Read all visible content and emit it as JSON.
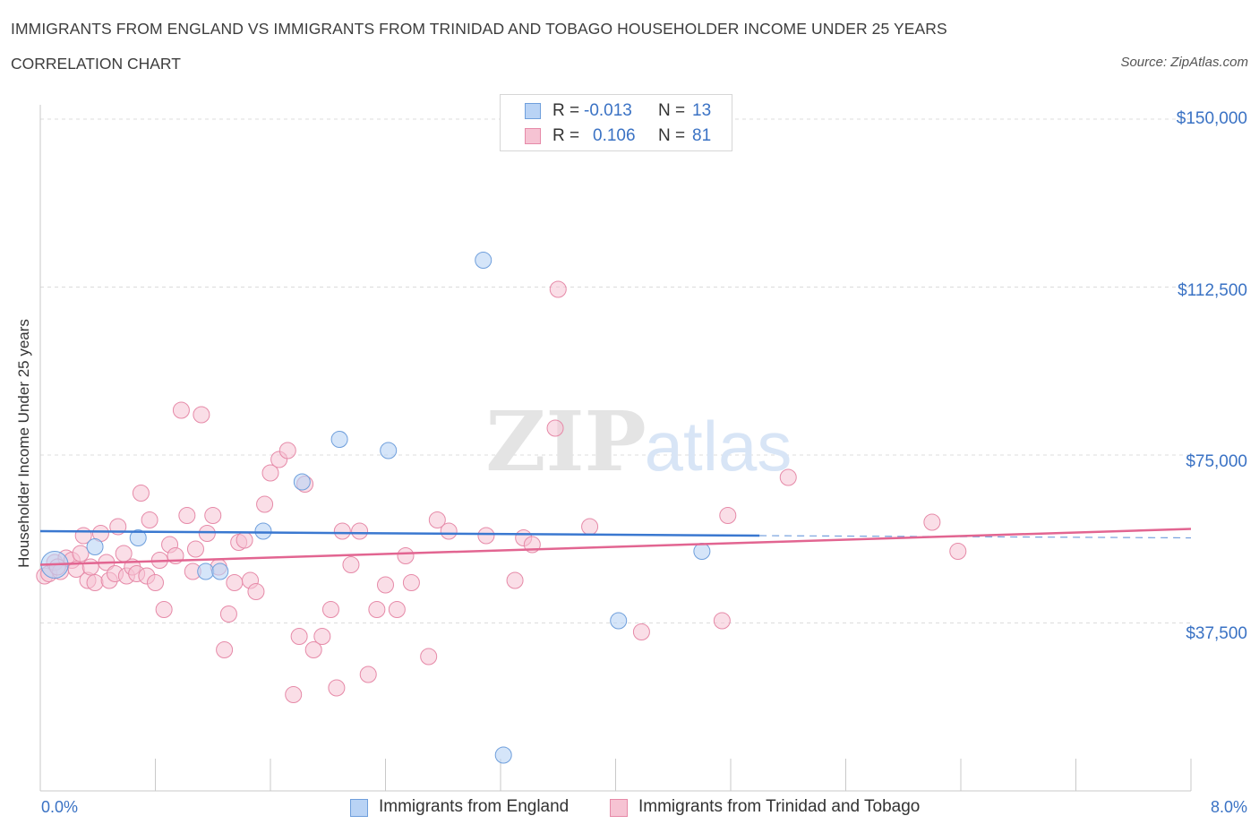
{
  "header": {
    "title": "IMMIGRANTS FROM ENGLAND VS IMMIGRANTS FROM TRINIDAD AND TOBAGO HOUSEHOLDER INCOME UNDER 25 YEARS",
    "subtitle": "CORRELATION CHART",
    "source": "Source: ZipAtlas.com"
  },
  "watermark": {
    "zip": "ZIP",
    "atlas": "atlas"
  },
  "legend_top": {
    "rows": [
      {
        "r_label": "R =",
        "r_value": "-0.013",
        "n_label": "N =",
        "n_value": "13"
      },
      {
        "r_label": "R =",
        "r_value": "0.106",
        "n_label": "N =",
        "n_value": "81"
      }
    ]
  },
  "legend_bottom": {
    "items": [
      {
        "label": "Immigrants from England"
      },
      {
        "label": "Immigrants from Trinidad and Tobago"
      }
    ]
  },
  "axes": {
    "ylabel": "Householder Income Under 25 years",
    "x_left_label": "0.0%",
    "x_right_label": "8.0%",
    "y_ticks": [
      "$150,000",
      "$112,500",
      "$75,000",
      "$37,500"
    ]
  },
  "colors": {
    "england_fill": "#b9d3f5",
    "england_stroke": "#6f9fdc",
    "england_line": "#3a78d0",
    "tt_fill": "#f6c3d3",
    "tt_stroke": "#e68aa8",
    "tt_line": "#e26591",
    "tick_text": "#3a72c4",
    "grid": "#dcdcdc"
  },
  "chart_data": {
    "type": "scatter",
    "xlabel": "",
    "ylabel": "Householder Income Under 25 years",
    "xlim": [
      0,
      8
    ],
    "ylim": [
      0,
      150000
    ],
    "y_gridlines": [
      150000,
      112500,
      75000,
      37500
    ],
    "grid": true,
    "legend_position": "top-center",
    "series": [
      {
        "name": "Immigrants from England",
        "color": "#b9d3f5",
        "trend": {
          "x": [
            0.0,
            5.0
          ],
          "y": [
            58000,
            57000
          ],
          "dashed_extension_to_x": 8.0,
          "dashed_end_y": 56500
        },
        "points": [
          {
            "x": 0.1,
            "y": 50500,
            "large": true
          },
          {
            "x": 0.38,
            "y": 54500
          },
          {
            "x": 0.68,
            "y": 56500
          },
          {
            "x": 1.15,
            "y": 49000
          },
          {
            "x": 1.25,
            "y": 49000
          },
          {
            "x": 1.55,
            "y": 58000
          },
          {
            "x": 1.82,
            "y": 69000
          },
          {
            "x": 2.08,
            "y": 78500
          },
          {
            "x": 2.42,
            "y": 76000
          },
          {
            "x": 3.08,
            "y": 118500
          },
          {
            "x": 3.22,
            "y": 8000
          },
          {
            "x": 4.02,
            "y": 38000
          },
          {
            "x": 4.6,
            "y": 53500
          }
        ]
      },
      {
        "name": "Immigrants from Trinidad and Tobago",
        "color": "#f6c3d3",
        "trend": {
          "x": [
            0.0,
            8.0
          ],
          "y": [
            50500,
            58500
          ]
        },
        "points": [
          {
            "x": 0.03,
            "y": 48000
          },
          {
            "x": 0.06,
            "y": 48500
          },
          {
            "x": 0.1,
            "y": 51000
          },
          {
            "x": 0.14,
            "y": 49000
          },
          {
            "x": 0.18,
            "y": 52000
          },
          {
            "x": 0.22,
            "y": 51500
          },
          {
            "x": 0.25,
            "y": 49500
          },
          {
            "x": 0.28,
            "y": 53000
          },
          {
            "x": 0.3,
            "y": 57000
          },
          {
            "x": 0.33,
            "y": 47000
          },
          {
            "x": 0.35,
            "y": 50000
          },
          {
            "x": 0.38,
            "y": 46500
          },
          {
            "x": 0.42,
            "y": 57500
          },
          {
            "x": 0.46,
            "y": 51000
          },
          {
            "x": 0.48,
            "y": 47000
          },
          {
            "x": 0.52,
            "y": 48500
          },
          {
            "x": 0.54,
            "y": 59000
          },
          {
            "x": 0.58,
            "y": 53000
          },
          {
            "x": 0.6,
            "y": 48000
          },
          {
            "x": 0.64,
            "y": 50000
          },
          {
            "x": 0.67,
            "y": 48500
          },
          {
            "x": 0.7,
            "y": 66500
          },
          {
            "x": 0.74,
            "y": 48000
          },
          {
            "x": 0.76,
            "y": 60500
          },
          {
            "x": 0.8,
            "y": 46500
          },
          {
            "x": 0.83,
            "y": 51500
          },
          {
            "x": 0.86,
            "y": 40500
          },
          {
            "x": 0.9,
            "y": 55000
          },
          {
            "x": 0.94,
            "y": 52500
          },
          {
            "x": 0.98,
            "y": 85000
          },
          {
            "x": 1.02,
            "y": 61500
          },
          {
            "x": 1.06,
            "y": 49000
          },
          {
            "x": 1.08,
            "y": 54000
          },
          {
            "x": 1.12,
            "y": 84000
          },
          {
            "x": 1.16,
            "y": 57500
          },
          {
            "x": 1.2,
            "y": 61500
          },
          {
            "x": 1.24,
            "y": 50000
          },
          {
            "x": 1.28,
            "y": 31500
          },
          {
            "x": 1.31,
            "y": 39500
          },
          {
            "x": 1.35,
            "y": 46500
          },
          {
            "x": 1.38,
            "y": 55500
          },
          {
            "x": 1.42,
            "y": 56000
          },
          {
            "x": 1.46,
            "y": 47000
          },
          {
            "x": 1.5,
            "y": 44500
          },
          {
            "x": 1.56,
            "y": 64000
          },
          {
            "x": 1.6,
            "y": 71000
          },
          {
            "x": 1.66,
            "y": 74000
          },
          {
            "x": 1.72,
            "y": 76000
          },
          {
            "x": 1.76,
            "y": 21500
          },
          {
            "x": 1.8,
            "y": 34500
          },
          {
            "x": 1.84,
            "y": 68500
          },
          {
            "x": 1.9,
            "y": 31500
          },
          {
            "x": 1.96,
            "y": 34500
          },
          {
            "x": 2.02,
            "y": 40500
          },
          {
            "x": 2.06,
            "y": 23000
          },
          {
            "x": 2.1,
            "y": 58000
          },
          {
            "x": 2.16,
            "y": 50500
          },
          {
            "x": 2.22,
            "y": 58000
          },
          {
            "x": 2.28,
            "y": 26000
          },
          {
            "x": 2.34,
            "y": 40500
          },
          {
            "x": 2.4,
            "y": 46000
          },
          {
            "x": 2.48,
            "y": 40500
          },
          {
            "x": 2.54,
            "y": 52500
          },
          {
            "x": 2.58,
            "y": 46500
          },
          {
            "x": 2.7,
            "y": 30000
          },
          {
            "x": 2.76,
            "y": 60500
          },
          {
            "x": 2.84,
            "y": 58000
          },
          {
            "x": 3.1,
            "y": 57000
          },
          {
            "x": 3.3,
            "y": 47000
          },
          {
            "x": 3.36,
            "y": 56500
          },
          {
            "x": 3.42,
            "y": 55000
          },
          {
            "x": 3.6,
            "y": 112000
          },
          {
            "x": 3.58,
            "y": 81000
          },
          {
            "x": 3.82,
            "y": 59000
          },
          {
            "x": 4.18,
            "y": 35500
          },
          {
            "x": 4.74,
            "y": 38000
          },
          {
            "x": 4.78,
            "y": 61500
          },
          {
            "x": 5.2,
            "y": 70000
          },
          {
            "x": 6.2,
            "y": 60000
          },
          {
            "x": 6.38,
            "y": 53500
          },
          {
            "x": 0.12,
            "y": 50000
          }
        ]
      }
    ]
  }
}
